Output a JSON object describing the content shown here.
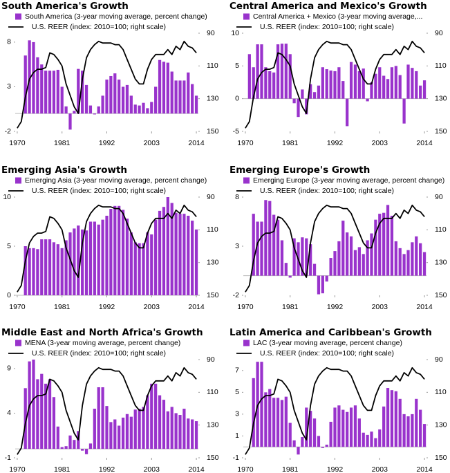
{
  "chart_data": [
    {
      "type": "bar",
      "title": "South America's Growth",
      "x": [
        1970,
        1971,
        1972,
        1973,
        1974,
        1975,
        1976,
        1977,
        1978,
        1979,
        1980,
        1981,
        1982,
        1983,
        1984,
        1985,
        1986,
        1987,
        1988,
        1989,
        1990,
        1991,
        1992,
        1993,
        1994,
        1995,
        1996,
        1997,
        1998,
        1999,
        2000,
        2001,
        2002,
        2003,
        2004,
        2005,
        2006,
        2007,
        2008,
        2009,
        2010,
        2011,
        2012,
        2013,
        2014
      ],
      "xlim": [
        1969.5,
        2014.5
      ],
      "xticks": [
        1970,
        1981,
        1992,
        2003,
        2014
      ],
      "ylim": [
        -2,
        9
      ],
      "yticks": [
        -2,
        3,
        8
      ],
      "y2lim": [
        150,
        90
      ],
      "y2ticks": [
        90,
        110,
        130,
        150
      ],
      "series": [
        {
          "name": "South America (3-year moving average, percent change)",
          "color": "#9933cc",
          "values": [
            null,
            null,
            6.5,
            8.2,
            8.0,
            6.3,
            5.5,
            4.8,
            4.8,
            4.8,
            4.9,
            3.0,
            0.8,
            -1.8,
            0.3,
            5.0,
            4.8,
            3.2,
            0.9,
            -0.1,
            0.8,
            2.0,
            3.8,
            4.2,
            4.5,
            3.8,
            3.0,
            3.2,
            2.0,
            1.0,
            0.9,
            1.2,
            0.6,
            1.3,
            3.0,
            6.0,
            5.8,
            5.7,
            4.7,
            3.7,
            3.7,
            3.7,
            4.6,
            3.3,
            2.0
          ]
        },
        {
          "name": "U.S. REER (index: 2010=100; right scale)",
          "color": "#000000",
          "type": "line",
          "axis": "y2",
          "values": [
            148,
            144,
            129,
            118,
            114,
            112,
            112,
            111,
            102,
            103,
            106,
            110,
            121,
            128,
            135,
            139,
            118,
            105,
            100,
            97,
            95,
            96,
            96,
            96,
            97,
            97,
            100,
            106,
            112,
            118,
            121,
            121,
            112,
            106,
            103,
            103,
            103,
            100,
            103,
            98,
            100,
            95,
            98,
            99,
            102
          ]
        }
      ]
    },
    {
      "type": "bar",
      "title": "Central America and Mexico's Growth",
      "x": [
        1970,
        1971,
        1972,
        1973,
        1974,
        1975,
        1976,
        1977,
        1978,
        1979,
        1980,
        1981,
        1982,
        1983,
        1984,
        1985,
        1986,
        1987,
        1988,
        1989,
        1990,
        1991,
        1992,
        1993,
        1994,
        1995,
        1996,
        1997,
        1998,
        1999,
        2000,
        2001,
        2002,
        2003,
        2004,
        2005,
        2006,
        2007,
        2008,
        2009,
        2010,
        2011,
        2012,
        2013,
        2014
      ],
      "xlim": [
        1969.5,
        2014.5
      ],
      "xticks": [
        1970,
        1981,
        1992,
        2003,
        2014
      ],
      "ylim": [
        -5,
        10
      ],
      "yticks": [
        -5,
        0,
        5,
        10
      ],
      "y2lim": [
        150,
        90
      ],
      "y2ticks": [
        90,
        110,
        130,
        150
      ],
      "series": [
        {
          "name": "Central America + Mexico (3-year moving average,...",
          "color": "#9933cc",
          "values": [
            null,
            6.8,
            4.8,
            8.3,
            8.3,
            4.8,
            4.2,
            4.0,
            8.3,
            8.4,
            8.4,
            6.8,
            -0.7,
            -2.8,
            1.4,
            -2.4,
            2.2,
            1.0,
            2.0,
            4.8,
            4.5,
            4.3,
            4.2,
            4.8,
            2.7,
            -4.2,
            5.6,
            5.2,
            4.2,
            4.6,
            -0.4,
            2.5,
            3.8,
            4.8,
            3.5,
            3.0,
            4.8,
            5.0,
            3.6,
            -3.8,
            5.2,
            4.7,
            4.2,
            2.0,
            2.8
          ]
        },
        {
          "name": "U.S. REER (index: 2010=100; right scale)",
          "color": "#000000",
          "type": "line",
          "axis": "y2",
          "values": [
            148,
            144,
            129,
            118,
            114,
            112,
            112,
            111,
            102,
            103,
            106,
            110,
            121,
            128,
            135,
            139,
            118,
            105,
            100,
            97,
            95,
            96,
            96,
            96,
            97,
            97,
            100,
            106,
            112,
            118,
            121,
            121,
            112,
            106,
            103,
            103,
            103,
            100,
            103,
            98,
            100,
            95,
            98,
            99,
            102
          ]
        }
      ]
    },
    {
      "type": "bar",
      "title": "Emerging Asia's Growth",
      "x": [
        1970,
        1971,
        1972,
        1973,
        1974,
        1975,
        1976,
        1977,
        1978,
        1979,
        1980,
        1981,
        1982,
        1983,
        1984,
        1985,
        1986,
        1987,
        1988,
        1989,
        1990,
        1991,
        1992,
        1993,
        1994,
        1995,
        1996,
        1997,
        1998,
        1999,
        2000,
        2001,
        2002,
        2003,
        2004,
        2005,
        2006,
        2007,
        2008,
        2009,
        2010,
        2011,
        2012,
        2013,
        2014
      ],
      "xlim": [
        1969.5,
        2014.5
      ],
      "xticks": [
        1970,
        1981,
        1992,
        2003,
        2014
      ],
      "ylim": [
        0,
        10
      ],
      "yticks": [
        0,
        5,
        10
      ],
      "y2lim": [
        150,
        90
      ],
      "y2ticks": [
        90,
        110,
        130,
        150
      ],
      "series": [
        {
          "name": "Emerging Asia (3-year moving average, percent change)",
          "color": "#9933cc",
          "values": [
            null,
            null,
            5.0,
            4.8,
            4.8,
            4.7,
            5.7,
            5.7,
            5.7,
            5.4,
            5.2,
            4.8,
            5.6,
            6.4,
            6.8,
            7.1,
            6.7,
            6.6,
            7.5,
            7.5,
            7.2,
            7.7,
            8.1,
            8.8,
            9.1,
            9.1,
            8.7,
            7.8,
            6.4,
            5.4,
            5.3,
            5.3,
            6.4,
            6.2,
            7.7,
            8.6,
            9.0,
            10.0,
            9.4,
            8.4,
            8.3,
            8.3,
            8.1,
            7.6,
            6.7
          ]
        },
        {
          "name": "U.S. REER (index: 2010=100; right scale)",
          "color": "#000000",
          "type": "line",
          "axis": "y2",
          "values": [
            148,
            144,
            129,
            118,
            114,
            112,
            112,
            111,
            102,
            103,
            106,
            110,
            121,
            128,
            135,
            139,
            118,
            105,
            100,
            97,
            95,
            96,
            96,
            96,
            97,
            97,
            100,
            106,
            112,
            118,
            121,
            121,
            112,
            106,
            103,
            103,
            103,
            100,
            103,
            98,
            100,
            95,
            98,
            99,
            102
          ]
        }
      ]
    },
    {
      "type": "bar",
      "title": "Emerging Europe's Growth",
      "x": [
        1970,
        1971,
        1972,
        1973,
        1974,
        1975,
        1976,
        1977,
        1978,
        1979,
        1980,
        1981,
        1982,
        1983,
        1984,
        1985,
        1986,
        1987,
        1988,
        1989,
        1990,
        1991,
        1992,
        1993,
        1994,
        1995,
        1996,
        1997,
        1998,
        1999,
        2000,
        2001,
        2002,
        2003,
        2004,
        2005,
        2006,
        2007,
        2008,
        2009,
        2010,
        2011,
        2012,
        2013,
        2014
      ],
      "xlim": [
        1969.5,
        2014.5
      ],
      "xticks": [
        1970,
        1981,
        1992,
        2003,
        2014
      ],
      "ylim": [
        -2,
        8
      ],
      "yticks": [
        -2,
        3,
        8
      ],
      "y2lim": [
        150,
        90
      ],
      "y2ticks": [
        90,
        110,
        130,
        150
      ],
      "series": [
        {
          "name": "Emerging Europe (3-year moving average, percent change)",
          "color": "#9933cc",
          "values": [
            null,
            null,
            6.3,
            5.5,
            5.5,
            7.7,
            7.6,
            6.2,
            5.7,
            3.6,
            1.3,
            -0.2,
            3.8,
            3.4,
            3.9,
            3.8,
            3.2,
            1.2,
            -1.9,
            -1.8,
            -0.6,
            1.8,
            2.5,
            3.5,
            5.6,
            4.4,
            4.0,
            2.6,
            2.9,
            2.2,
            3.6,
            4.3,
            5.7,
            6.3,
            6.4,
            7.2,
            6.1,
            3.5,
            2.8,
            2.2,
            2.6,
            3.4,
            4.0,
            3.3,
            2.4
          ]
        },
        {
          "name": "U.S. REER (index: 2010=100; right scale)",
          "color": "#000000",
          "type": "line",
          "axis": "y2",
          "values": [
            148,
            144,
            129,
            118,
            114,
            112,
            112,
            111,
            102,
            103,
            106,
            110,
            121,
            128,
            135,
            139,
            118,
            105,
            100,
            97,
            95,
            96,
            96,
            96,
            97,
            97,
            100,
            106,
            112,
            118,
            121,
            121,
            112,
            106,
            103,
            103,
            103,
            100,
            103,
            98,
            100,
            95,
            98,
            99,
            102
          ]
        }
      ]
    },
    {
      "type": "bar",
      "title": "Middle East and North Africa's Growth",
      "x": [
        1970,
        1971,
        1972,
        1973,
        1974,
        1975,
        1976,
        1977,
        1978,
        1979,
        1980,
        1981,
        1982,
        1983,
        1984,
        1985,
        1986,
        1987,
        1988,
        1989,
        1990,
        1991,
        1992,
        1993,
        1994,
        1995,
        1996,
        1997,
        1998,
        1999,
        2000,
        2001,
        2002,
        2003,
        2004,
        2005,
        2006,
        2007,
        2008,
        2009,
        2010,
        2011,
        2012,
        2013,
        2014
      ],
      "xlim": [
        1969.5,
        2014.5
      ],
      "xticks": [
        1970,
        1981,
        1992,
        2003,
        2014
      ],
      "ylim": [
        -1,
        10
      ],
      "yticks": [
        -1,
        4,
        9
      ],
      "y2lim": [
        150,
        90
      ],
      "y2ticks": [
        90,
        110,
        130,
        150
      ],
      "series": [
        {
          "name": "MENA  (3-year moving average, percent change)",
          "color": "#9933cc",
          "values": [
            null,
            null,
            6.8,
            9.8,
            10,
            7.8,
            8.4,
            7.3,
            7.8,
            5.8,
            2.5,
            0.2,
            0.3,
            1.5,
            1.0,
            2.0,
            -0.2,
            -0.6,
            0.6,
            4.5,
            6.9,
            6.9,
            4.8,
            3.0,
            3.3,
            2.6,
            3.5,
            3.9,
            3.6,
            4.4,
            4.5,
            4.7,
            6.0,
            7.3,
            7.3,
            6.0,
            5.5,
            4.2,
            4.7,
            4.0,
            3.8,
            4.5,
            3.4,
            3.3,
            3.1
          ]
        },
        {
          "name": "U.S. REER (index: 2010=100; right scale)",
          "color": "#000000",
          "type": "line",
          "axis": "y2",
          "values": [
            148,
            144,
            129,
            118,
            114,
            112,
            112,
            111,
            102,
            103,
            106,
            110,
            121,
            128,
            135,
            139,
            118,
            105,
            100,
            97,
            95,
            96,
            96,
            96,
            97,
            97,
            100,
            106,
            112,
            118,
            121,
            121,
            112,
            106,
            103,
            103,
            103,
            100,
            103,
            98,
            100,
            95,
            98,
            99,
            102
          ]
        }
      ]
    },
    {
      "type": "bar",
      "title": "Latin America and Caribbean's Growth",
      "x": [
        1970,
        1971,
        1972,
        1973,
        1974,
        1975,
        1976,
        1977,
        1978,
        1979,
        1980,
        1981,
        1982,
        1983,
        1984,
        1985,
        1986,
        1987,
        1988,
        1989,
        1990,
        1991,
        1992,
        1993,
        1994,
        1995,
        1996,
        1997,
        1998,
        1999,
        2000,
        2001,
        2002,
        2003,
        2004,
        2005,
        2006,
        2007,
        2008,
        2009,
        2010,
        2011,
        2012,
        2013,
        2014
      ],
      "xlim": [
        1969.5,
        2014.5
      ],
      "xticks": [
        1970,
        1981,
        1992,
        2003,
        2014
      ],
      "ylim": [
        -1,
        8
      ],
      "yticks": [
        -1,
        1,
        3,
        5,
        7
      ],
      "y2lim": [
        150,
        90
      ],
      "y2ticks": [
        90,
        110,
        130,
        150
      ],
      "series": [
        {
          "name": "LAC (3-year moving average, percent change)",
          "color": "#9933cc",
          "values": [
            null,
            null,
            6.3,
            7.8,
            7.8,
            5.0,
            5.3,
            4.5,
            4.5,
            4.3,
            4.6,
            2.2,
            0.6,
            -0.7,
            0.9,
            3.6,
            3.3,
            2.6,
            1.0,
            -0.1,
            0.2,
            2.3,
            3.6,
            3.8,
            3.4,
            3.2,
            3.6,
            3.8,
            2.6,
            1.3,
            1.1,
            1.4,
            0.8,
            1.6,
            3.7,
            5.4,
            5.2,
            5.1,
            4.4,
            3.0,
            2.8,
            3.0,
            4.4,
            3.4,
            2.1
          ]
        },
        {
          "name": "U.S. REER (index: 2010=100; right scale)",
          "color": "#000000",
          "type": "line",
          "axis": "y2",
          "values": [
            148,
            144,
            129,
            118,
            114,
            112,
            112,
            111,
            102,
            103,
            106,
            110,
            121,
            128,
            135,
            139,
            118,
            105,
            100,
            97,
            95,
            96,
            96,
            96,
            97,
            97,
            100,
            106,
            112,
            118,
            121,
            121,
            112,
            106,
            103,
            103,
            103,
            100,
            103,
            98,
            100,
            95,
            98,
            99,
            102
          ]
        }
      ]
    }
  ]
}
